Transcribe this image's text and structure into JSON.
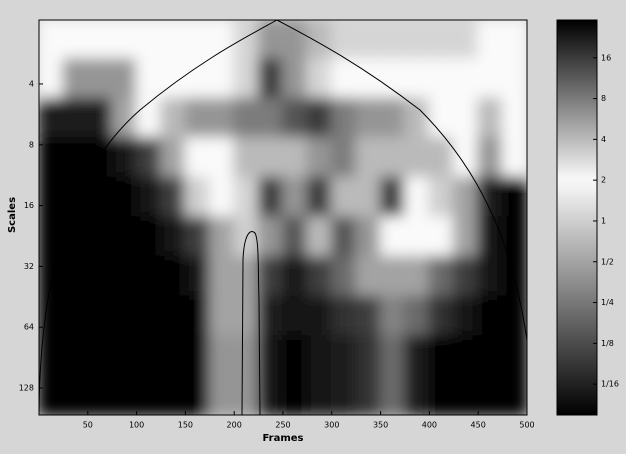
{
  "chart_data": {
    "type": "heatmap",
    "x_label": "Frames",
    "y_label": "Scales",
    "x": [
      12.5,
      37.5,
      62.5,
      87.5,
      112.5,
      137.5,
      162.5,
      187.5,
      212.5,
      237.5,
      262.5,
      287.5,
      312.5,
      337.5,
      362.5,
      387.5,
      412.5,
      437.5,
      462.5,
      487.5
    ],
    "y": [
      2.4,
      3.8,
      5.9,
      9.3,
      14.6,
      22.9,
      36,
      56.5,
      88.7,
      139
    ],
    "z": [
      [
        2,
        2,
        2,
        2,
        2,
        2,
        2,
        2,
        3,
        6,
        6,
        4,
        3,
        3,
        3,
        3,
        3,
        3,
        2,
        2
      ],
      [
        2,
        6,
        6,
        6,
        2,
        2,
        2,
        2,
        3,
        16,
        6,
        3,
        2,
        2,
        2,
        2,
        2,
        2,
        2,
        2
      ],
      [
        0.06,
        0.06,
        0.06,
        0.5,
        2,
        4,
        6,
        6,
        8,
        8,
        12,
        16,
        8,
        6,
        6,
        4,
        2,
        2,
        4,
        2
      ],
      [
        0.04,
        0.04,
        0.04,
        0.05,
        0.1,
        0.5,
        2,
        2,
        4,
        4,
        4,
        6,
        8,
        4,
        4,
        4,
        4,
        2,
        6,
        2
      ],
      [
        0.04,
        0.04,
        0.04,
        0.04,
        0.05,
        0.1,
        1,
        2,
        3,
        16,
        6,
        16,
        4,
        4,
        16,
        2,
        1,
        0.5,
        0.06,
        0.04
      ],
      [
        0.04,
        0.04,
        0.04,
        0.04,
        0.04,
        0.05,
        0.1,
        0.5,
        1,
        6,
        12,
        4,
        12,
        6,
        2,
        2,
        2,
        0.5,
        0.05,
        0.04
      ],
      [
        0.04,
        0.04,
        0.04,
        0.04,
        0.04,
        0.04,
        0.05,
        0.5,
        0.5,
        0.1,
        0.05,
        0.1,
        0.2,
        0.5,
        0.5,
        0.5,
        0.2,
        0.1,
        0.05,
        0.04
      ],
      [
        0.04,
        0.04,
        0.04,
        0.04,
        0.04,
        0.04,
        0.04,
        0.5,
        0.5,
        0.06,
        0.05,
        0.05,
        0.08,
        0.1,
        0.3,
        0.2,
        0.08,
        0.05,
        0.04,
        0.04
      ],
      [
        0.04,
        0.04,
        0.04,
        0.04,
        0.04,
        0.04,
        0.04,
        0.4,
        0.4,
        0.05,
        0.04,
        0.05,
        0.06,
        0.08,
        0.2,
        0.06,
        0.04,
        0.04,
        0.04,
        0.04
      ],
      [
        0.04,
        0.04,
        0.04,
        0.04,
        0.04,
        0.04,
        0.04,
        0.4,
        0.4,
        0.05,
        0.04,
        0.05,
        0.06,
        0.08,
        0.2,
        0.06,
        0.04,
        0.04,
        0.04,
        0.04
      ]
    ],
    "xlim": [
      0,
      500
    ],
    "xticks": [
      50,
      100,
      150,
      200,
      250,
      300,
      350,
      400,
      450,
      500
    ],
    "ylim": [
      1.93,
      174
    ],
    "yticks": [
      4,
      8,
      16,
      32,
      64,
      128
    ],
    "y_log": true,
    "y_inverted": true,
    "colorbar": {
      "lim": [
        0.037,
        30.4
      ],
      "log": true,
      "ticks": [
        16,
        8,
        4,
        2,
        1,
        {
          "value": 0.5,
          "label": "1/2"
        },
        {
          "value": 0.25,
          "label": "1/4"
        },
        {
          "value": 0.125,
          "label": "1/8"
        },
        {
          "value": 0.0625,
          "label": "1/16"
        }
      ]
    }
  }
}
